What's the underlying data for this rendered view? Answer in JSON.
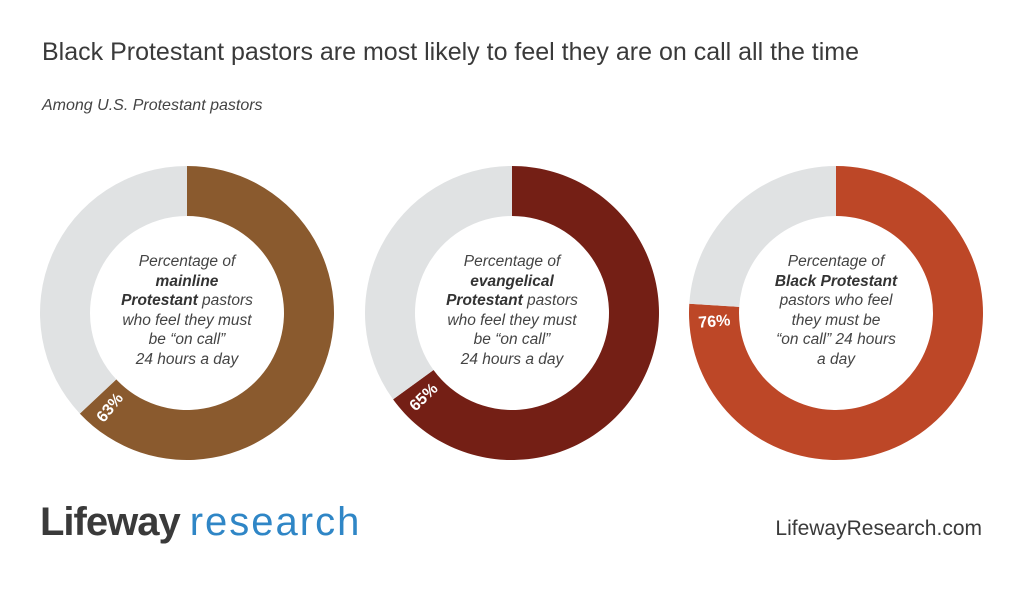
{
  "title": "Black Protestant pastors are most likely to feel they are on call all the time",
  "subtitle": "Among U.S. Protestant pastors",
  "chart_data": {
    "type": "pie",
    "variant": "donut",
    "remainder_color": "#e0e2e3",
    "charts": [
      {
        "name": "mainline Protestant",
        "value": 63,
        "label": "63%",
        "color": "#8a5a2e",
        "center_lines": [
          [
            {
              "t": "Percentage of",
              "b": false
            }
          ],
          [
            {
              "t": "mainline",
              "b": true
            }
          ],
          [
            {
              "t": "Protestant",
              "b": true
            },
            {
              "t": " pastors",
              "b": false
            }
          ],
          [
            {
              "t": "who feel they must",
              "b": false
            }
          ],
          [
            {
              "t": "be “on call”",
              "b": false
            }
          ],
          [
            {
              "t": "24 hours a day",
              "b": false
            }
          ]
        ]
      },
      {
        "name": "evangelical Protestant",
        "value": 65,
        "label": "65%",
        "color": "#741f15",
        "center_lines": [
          [
            {
              "t": "Percentage of",
              "b": false
            }
          ],
          [
            {
              "t": "evangelical",
              "b": true
            }
          ],
          [
            {
              "t": "Protestant",
              "b": true
            },
            {
              "t": " pastors",
              "b": false
            }
          ],
          [
            {
              "t": "who feel they must",
              "b": false
            }
          ],
          [
            {
              "t": "be “on call”",
              "b": false
            }
          ],
          [
            {
              "t": "24 hours a day",
              "b": false
            }
          ]
        ]
      },
      {
        "name": "Black Protestant",
        "value": 76,
        "label": "76%",
        "color": "#bd4727",
        "center_lines": [
          [
            {
              "t": "Percentage of",
              "b": false
            }
          ],
          [
            {
              "t": "Black Protestant",
              "b": true
            }
          ],
          [
            {
              "t": "pastors who feel",
              "b": false
            }
          ],
          [
            {
              "t": "they must be",
              "b": false
            }
          ],
          [
            {
              "t": "“on call” 24 hours",
              "b": false
            }
          ],
          [
            {
              "t": "a day",
              "b": false
            }
          ]
        ]
      }
    ]
  },
  "footer": {
    "logo_a": "Lifeway",
    "logo_b": "research",
    "site": "LifewayResearch.com"
  }
}
